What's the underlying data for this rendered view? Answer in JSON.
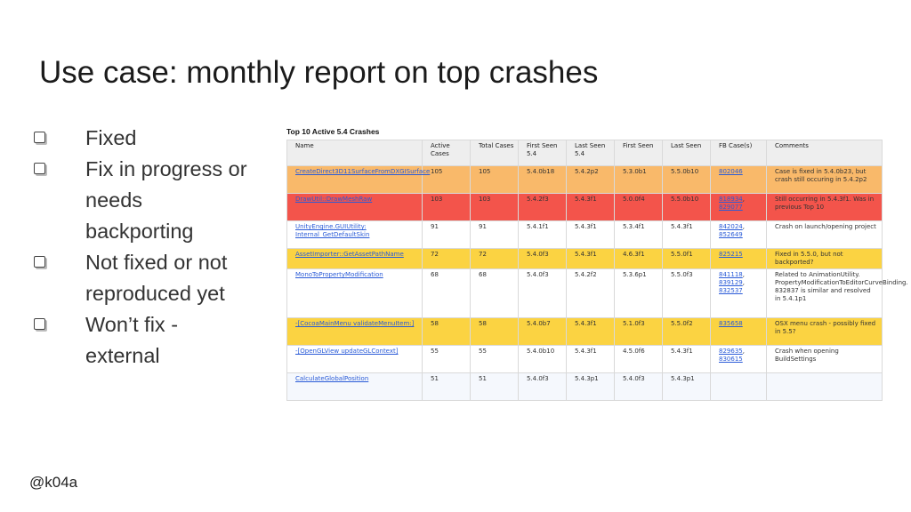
{
  "title": "Use case: monthly report on top crashes",
  "bullets": [
    {
      "text": "Fixed"
    },
    {
      "text": "Fix in progress or needs backporting"
    },
    {
      "text": "Not fixed or not reproduced yet"
    },
    {
      "text": "Won’t fix - external"
    }
  ],
  "footer": "@k04a",
  "report": {
    "title": "Top 10 Active 5.4 Crashes",
    "headers": [
      "Name",
      "Active Cases",
      "Total Cases",
      "First Seen 5.4",
      "Last Seen 5.4",
      "First Seen",
      "Last Seen",
      "FB Case(s)",
      "Comments"
    ],
    "rows": [
      {
        "status": "fixed",
        "name": "CreateDirect3D11SurfaceFromDXGISurface",
        "active": "105",
        "total": "105",
        "first54": "5.4.0b18",
        "last54": "5.4.2p2",
        "first": "5.3.0b1",
        "last": "5.5.0b10",
        "fb": [
          "802046"
        ],
        "comment": "Case is fixed in 5.4.0b23, but crash still occuring in 5.4.2p2"
      },
      {
        "status": "progress",
        "name": "DrawUtil::DrawMeshRaw",
        "active": "103",
        "total": "103",
        "first54": "5.4.2f3",
        "last54": "5.4.3f1",
        "first": "5.0.0f4",
        "last": "5.5.0b10",
        "fb": [
          "818934",
          "829077"
        ],
        "comment": "Still occurring in 5.4.3f1. Was in previous Top 10"
      },
      {
        "status": "notfixed",
        "name": "UnityEngine.GUIUtility: Internal_GetDefaultSkin",
        "active": "91",
        "total": "91",
        "first54": "5.4.1f1",
        "last54": "5.4.3f1",
        "first": "5.3.4f1",
        "last": "5.4.3f1",
        "fb": [
          "842024",
          "852649"
        ],
        "comment": "Crash on launch/opening project"
      },
      {
        "status": "wontfix",
        "name": "AssetImporter::GetAssetPathName",
        "active": "72",
        "total": "72",
        "first54": "5.4.0f3",
        "last54": "5.4.3f1",
        "first": "4.6.3f1",
        "last": "5.5.0f1",
        "fb": [
          "825215"
        ],
        "comment": "Fixed in 5.5.0, but not backported?"
      },
      {
        "status": "notfixed",
        "name": "MonoToPropertyModification",
        "active": "68",
        "total": "68",
        "first54": "5.4.0f3",
        "last54": "5.4.2f2",
        "first": "5.3.6p1",
        "last": "5.5.0f3",
        "fb": [
          "841118",
          "839129",
          "832537"
        ],
        "comment": "Related to AnimationUtility. PropertyModificationToEditorCurveBinding. 832837 is similar and resolved in 5.4.1p1"
      },
      {
        "status": "wontfix",
        "name": "-[CocoaMainMenu validateMenuItem:]",
        "active": "58",
        "total": "58",
        "first54": "5.4.0b7",
        "last54": "5.4.3f1",
        "first": "5.1.0f3",
        "last": "5.5.0f2",
        "fb": [
          "835658"
        ],
        "comment": "OSX menu crash - possibly fixed in 5.5?"
      },
      {
        "status": "notfixed",
        "name": "-[OpenGLView updateGLContext]",
        "active": "55",
        "total": "55",
        "first54": "5.4.0b10",
        "last54": "5.4.3f1",
        "first": "4.5.0f6",
        "last": "5.4.3f1",
        "fb": [
          "829635",
          "830615"
        ],
        "comment": "Crash when opening BuildSettings"
      },
      {
        "status": "blue",
        "name": "CalculateGlobalPosition",
        "active": "51",
        "total": "51",
        "first54": "5.4.0f3",
        "last54": "5.4.3p1",
        "first": "5.4.0f3",
        "last": "5.4.3p1",
        "fb": [],
        "comment": ""
      }
    ]
  },
  "colors": {
    "fixed": "#f9b96a",
    "progress": "#f3544b",
    "wontfix": "#fbd342",
    "notfixed": "#ffffff"
  }
}
